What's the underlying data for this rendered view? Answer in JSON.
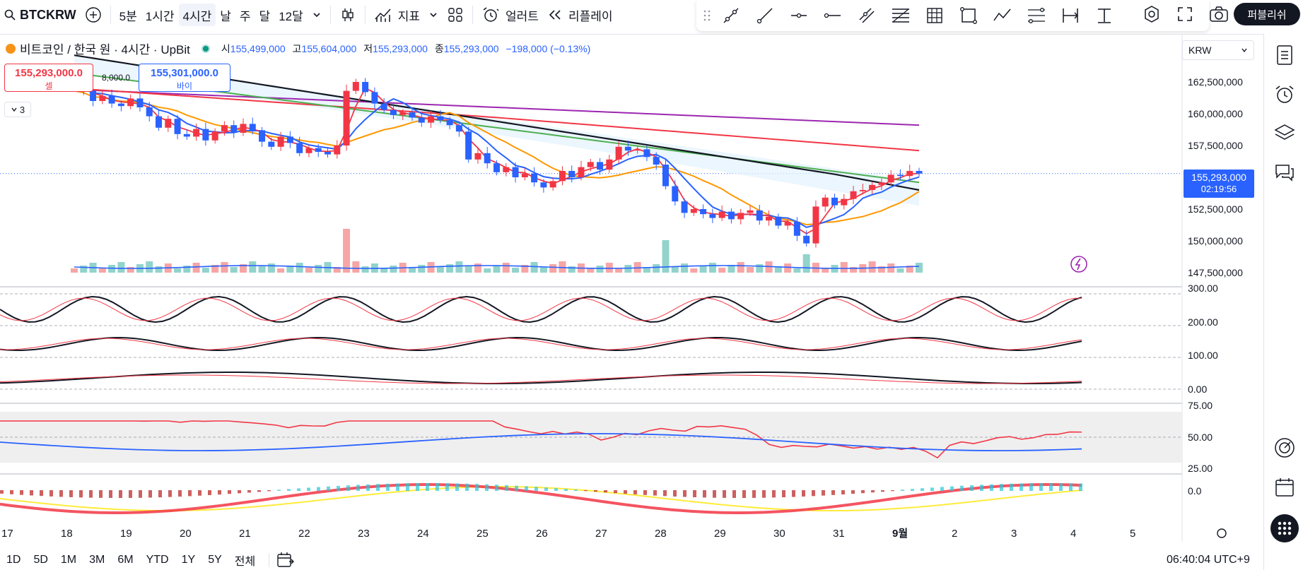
{
  "toolbar": {
    "symbol": "BTCKRW",
    "timeframes": [
      "5분",
      "1시간",
      "4시간",
      "날",
      "주",
      "달",
      "12달"
    ],
    "active_timeframe": "4시간",
    "indicators_label": "지표",
    "alerts_label": "얼러트",
    "replay_label": "리플레이",
    "trade_label": "퍼블리쉬"
  },
  "legend": {
    "title": "비트코인 / 한국 원 · 4시간 · UpBit",
    "open_label": "시",
    "open": "155,499,000",
    "high_label": "고",
    "high": "155,604,000",
    "low_label": "저",
    "low": "155,293,000",
    "close_label": "종",
    "close": "155,293,000",
    "change": "−198,000 (−0.13%)"
  },
  "trade_boxes": {
    "sell_price": "155,293,000.0",
    "sell_label": "셀",
    "buy_price": "155,301,000.0",
    "buy_label": "바이",
    "spread": "8,000.0"
  },
  "collapse_count": "3",
  "currency": "KRW",
  "price_axis": [
    "162,500,000",
    "160,000,000",
    "157,500,000",
    "152,500,000",
    "150,000,000",
    "147,500,000"
  ],
  "current_price": {
    "price": "155,293,000",
    "countdown": "02:19:56"
  },
  "osc1_axis": [
    "300.00",
    "200.00",
    "100.00",
    "0.00"
  ],
  "osc2_axis": [
    "75.00",
    "50.00",
    "25.00"
  ],
  "osc3_axis": [
    "0.0"
  ],
  "time_axis": [
    "17",
    "18",
    "19",
    "20",
    "21",
    "22",
    "23",
    "24",
    "25",
    "26",
    "27",
    "28",
    "29",
    "30",
    "31",
    "9월",
    "2",
    "3",
    "4",
    "5"
  ],
  "ranges": [
    "1D",
    "5D",
    "1M",
    "3M",
    "6M",
    "YTD",
    "1Y",
    "5Y",
    "전체"
  ],
  "clock": "06:40:04 UTC+9",
  "colors": {
    "up": "#f23645",
    "down": "#2962ff",
    "accent": "#2962ff"
  },
  "chart_data": {
    "type": "candlestick",
    "x": [
      "17",
      "18",
      "19",
      "20",
      "21",
      "22",
      "23",
      "24",
      "25",
      "26",
      "27",
      "28",
      "29",
      "30",
      "31",
      "9월",
      "2",
      "3",
      "4",
      "5"
    ],
    "ylim": [
      147500000,
      165000000
    ],
    "close_series": [
      162100000,
      161800000,
      161000000,
      161400000,
      160800000,
      160600000,
      161200000,
      160500000,
      159800000,
      158900000,
      159600000,
      158400000,
      158200000,
      158800000,
      157900000,
      158600000,
      159100000,
      158500000,
      159200000,
      158700000,
      157800000,
      157400000,
      158200000,
      157700000,
      156900000,
      157300000,
      157000000,
      156800000,
      157500000,
      161800000,
      162500000,
      161700000,
      160800000,
      160300000,
      159900000,
      160100000,
      159700000,
      159300000,
      159800000,
      159500000,
      159100000,
      158600000,
      156400000,
      156900000,
      156100000,
      155400000,
      155800000,
      155000000,
      155300000,
      154600000,
      154200000,
      154700000,
      155500000,
      155000000,
      155800000,
      156200000,
      155600000,
      156400000,
      157400000,
      157100000,
      157200000,
      156600000,
      156000000,
      154300000,
      153100000,
      152200000,
      152500000,
      152100000,
      151800000,
      152300000,
      151700000,
      152200000,
      152400000,
      151600000,
      151900000,
      151200000,
      151500000,
      150400000,
      149800000,
      152700000,
      153400000,
      152800000,
      153300000,
      153900000,
      154000000,
      154400000,
      154600000,
      155200000,
      155100000,
      155499000,
      155293000
    ],
    "volume_note": "volume bars shown beneath price"
  }
}
